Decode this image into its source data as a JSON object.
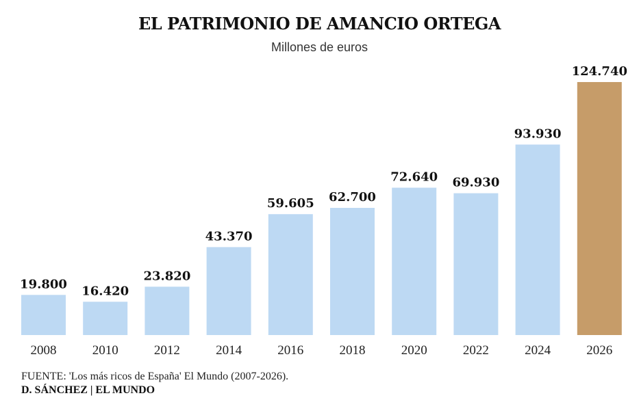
{
  "colors": {
    "bar": "#bdd9f3",
    "highlight": "#c69c69"
  },
  "chart_data": {
    "type": "bar",
    "title": "EL PATRIMONIO DE AMANCIO ORTEGA",
    "subtitle": "Millones de euros",
    "categories": [
      "2008",
      "2010",
      "2012",
      "2014",
      "2016",
      "2018",
      "2020",
      "2022",
      "2024",
      "2026"
    ],
    "values": [
      19800,
      16420,
      23820,
      43370,
      59605,
      62700,
      72640,
      69930,
      93930,
      124740
    ],
    "value_labels": [
      "19.800",
      "16.420",
      "23.820",
      "43.370",
      "59.605",
      "62.700",
      "72.640",
      "69.930",
      "93.930",
      "124.740"
    ],
    "highlight_index": 9,
    "ylim": [
      0,
      124740
    ],
    "grid": false,
    "legend": "none",
    "source": "FUENTE: 'Los más ricos de España' El Mundo (2007-2026).",
    "credit": "D. SÁNCHEZ | EL MUNDO"
  }
}
